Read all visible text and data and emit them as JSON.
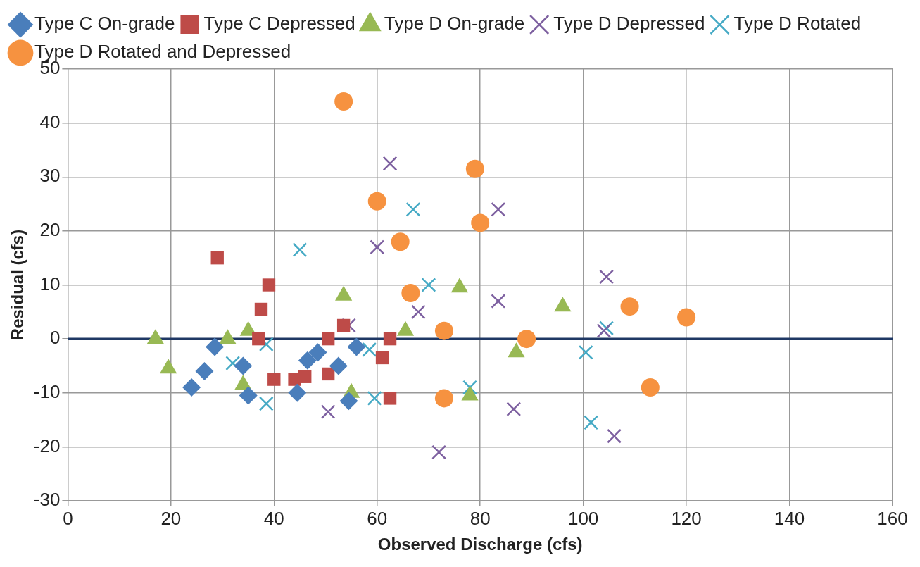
{
  "chart_data": {
    "type": "scatter",
    "xlabel": "Observed Discharge (cfs)",
    "ylabel": "Residual (cfs)",
    "xlim": [
      0,
      160
    ],
    "xticks": [
      0,
      20,
      40,
      60,
      80,
      100,
      120,
      140,
      160
    ],
    "ylim": [
      -30,
      50
    ],
    "yticks": [
      -30,
      -20,
      -10,
      0,
      10,
      20,
      30,
      40,
      50
    ],
    "grid": true,
    "legend": "top",
    "ref_lines": [
      {
        "axis": "y",
        "value": 0,
        "color": "#1f3864"
      }
    ],
    "series": [
      {
        "name": "Type C On-grade",
        "color": "#4a7ebb",
        "marker": "diamond",
        "x": [
          24,
          26.5,
          28.5,
          34,
          35,
          44.5,
          46.5,
          48.5,
          52.5,
          54.5,
          56
        ],
        "values": [
          -9,
          -6,
          -1.5,
          -5,
          -10.5,
          -10,
          -4,
          -2.5,
          -5,
          -11.5,
          -1.5
        ]
      },
      {
        "name": "Type C Depressed",
        "color": "#be4b48",
        "marker": "square",
        "x": [
          29,
          37.5,
          39,
          37,
          40,
          44,
          46,
          50.5,
          50.5,
          53.5,
          61,
          62.5,
          62.5
        ],
        "values": [
          15,
          5.5,
          10,
          0,
          -7.5,
          -7.5,
          -7,
          0,
          -6.5,
          2.5,
          -3.5,
          0,
          -11
        ]
      },
      {
        "name": "Type D On-grade",
        "color": "#98b954",
        "marker": "triangle",
        "x": [
          17,
          19.5,
          31,
          34,
          35,
          53.5,
          55,
          65.5,
          76,
          78,
          87,
          96
        ],
        "values": [
          0,
          -5.5,
          0,
          -8.5,
          1.5,
          8,
          -10,
          1.5,
          9.5,
          -10.5,
          -2.5,
          6
        ]
      },
      {
        "name": "Type D Depressed",
        "color": "#7d60a0",
        "marker": "cross",
        "x": [
          62.5,
          60,
          54.5,
          50.5,
          68,
          72,
          83.5,
          83.5,
          86.5,
          104.5,
          104,
          106
        ],
        "values": [
          32.5,
          17,
          2.5,
          -13.5,
          5,
          -21,
          24,
          7,
          -13,
          11.5,
          1.5,
          -18
        ]
      },
      {
        "name": "Type D Rotated",
        "color": "#46aac5",
        "marker": "cross",
        "x": [
          32,
          38.5,
          38.5,
          45,
          58.5,
          59.5,
          67,
          70,
          78,
          100.5,
          104.5,
          101.5
        ],
        "values": [
          -4.5,
          -1,
          -12,
          16.5,
          -2,
          -11,
          24,
          10,
          -9,
          -2.5,
          2,
          -15.5
        ]
      },
      {
        "name": "Type D Rotated and Depressed",
        "color": "#f69240",
        "marker": "circle",
        "x": [
          53.5,
          60,
          64.5,
          66.5,
          73,
          73,
          79,
          80,
          89,
          109,
          113,
          120
        ],
        "values": [
          44,
          25.5,
          18,
          8.5,
          1.5,
          -11,
          31.5,
          21.5,
          0,
          6,
          -9,
          4
        ]
      }
    ]
  }
}
